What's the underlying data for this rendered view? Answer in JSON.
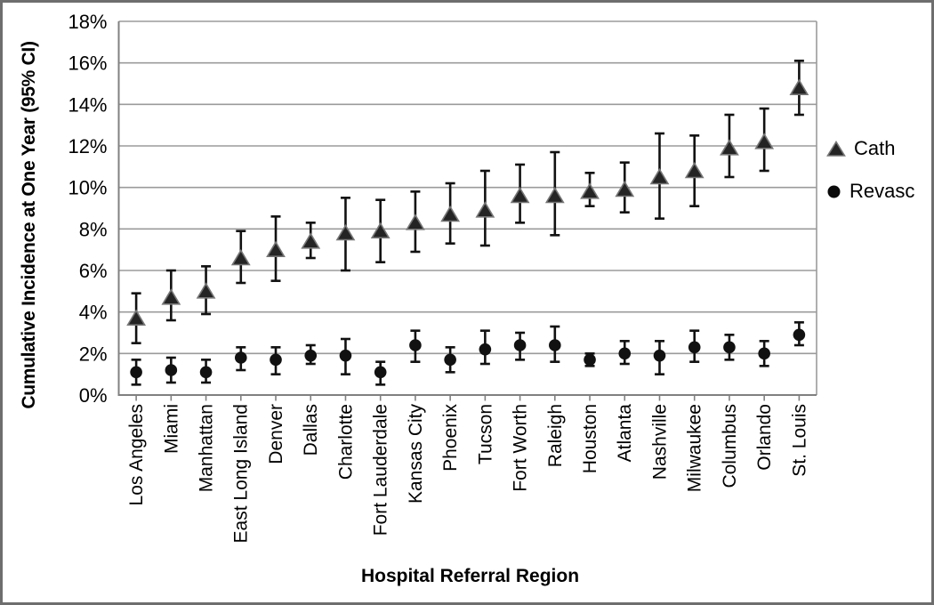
{
  "chart_data": {
    "type": "scatter",
    "title": "",
    "xlabel": "Hospital Referral Region",
    "ylabel": "Cumulative Incidence at One Year (95% CI)",
    "grid": true,
    "legend_position": "right",
    "y_axis": {
      "min": 0,
      "max": 18,
      "step": 2,
      "tick_labels": [
        "0%",
        "2%",
        "4%",
        "6%",
        "8%",
        "10%",
        "12%",
        "14%",
        "16%",
        "18%"
      ]
    },
    "categories": [
      "Los Angeles",
      "Miami",
      "Manhattan",
      "East Long Island",
      "Denver",
      "Dallas",
      "Charlotte",
      "Fort Lauderdale",
      "Kansas City",
      "Phoenix",
      "Tucson",
      "Fort Worth",
      "Raleigh",
      "Houston",
      "Atlanta",
      "Nashville",
      "Milwaukee",
      "Columbus",
      "Orlando",
      "St. Louis"
    ],
    "series": [
      {
        "name": "Cath",
        "marker": "triangle",
        "values": [
          3.7,
          4.7,
          5.0,
          6.6,
          7.0,
          7.4,
          7.8,
          7.9,
          8.3,
          8.7,
          8.9,
          9.6,
          9.6,
          9.8,
          9.9,
          10.5,
          10.8,
          11.9,
          12.2,
          14.8
        ],
        "ci_low": [
          2.5,
          3.6,
          3.9,
          5.4,
          5.5,
          6.6,
          6.0,
          6.4,
          6.9,
          7.3,
          7.2,
          8.3,
          7.7,
          9.1,
          8.8,
          8.5,
          9.1,
          10.5,
          10.8,
          13.5
        ],
        "ci_high": [
          4.9,
          6.0,
          6.2,
          7.9,
          8.6,
          8.3,
          9.5,
          9.4,
          9.8,
          10.2,
          10.8,
          11.1,
          11.7,
          10.7,
          11.2,
          12.6,
          12.5,
          13.5,
          13.8,
          16.1
        ]
      },
      {
        "name": "Revasc",
        "marker": "circle",
        "values": [
          1.1,
          1.2,
          1.1,
          1.8,
          1.7,
          1.9,
          1.9,
          1.1,
          2.4,
          1.7,
          2.2,
          2.4,
          2.4,
          1.7,
          2.0,
          1.9,
          2.3,
          2.3,
          2.0,
          2.9
        ],
        "ci_low": [
          0.5,
          0.6,
          0.6,
          1.2,
          1.0,
          1.5,
          1.0,
          0.5,
          1.6,
          1.1,
          1.5,
          1.7,
          1.6,
          1.4,
          1.5,
          1.0,
          1.6,
          1.7,
          1.4,
          2.4
        ],
        "ci_high": [
          1.7,
          1.8,
          1.7,
          2.3,
          2.3,
          2.4,
          2.7,
          1.6,
          3.1,
          2.3,
          3.1,
          3.0,
          3.3,
          2.0,
          2.6,
          2.6,
          3.1,
          2.9,
          2.6,
          3.5
        ]
      }
    ],
    "legend": {
      "entries": [
        "Cath",
        "Revasc"
      ]
    }
  },
  "colors": {
    "marker": "#111111",
    "triangle_fill": "#242424",
    "triangle_stroke": "#767676",
    "error_bar": "#111111",
    "gridline": "#9b9b9b",
    "axis": "#808080",
    "frame_border": "#6e6e6e",
    "text": "#000000",
    "background": "#ffffff"
  }
}
